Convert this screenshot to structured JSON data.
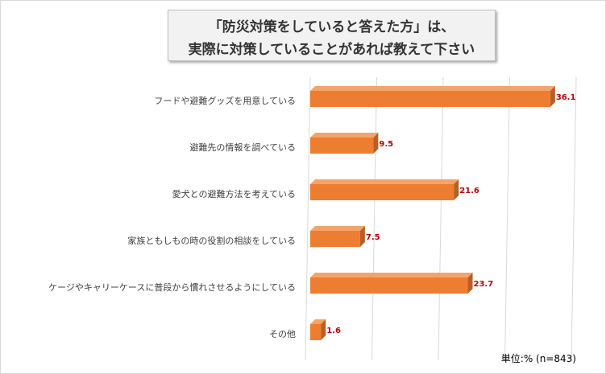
{
  "title": {
    "line1": "「防災対策をしていると答えた方」は、",
    "line2": "実際に対策していることがあれば教えて下さい"
  },
  "unit_note": "単位:% (n=843)",
  "colors": {
    "bar_front": "#ed7d31",
    "bar_top": "#f4a46a",
    "bar_side": "#b85f22",
    "label": "#c00000",
    "gridline": "#d9d9d9"
  },
  "chart_data": {
    "type": "bar",
    "orientation": "horizontal",
    "style": "3d",
    "categories": [
      "フードや避難グッズを用意している",
      "避難先の情報を調べている",
      "愛犬との避難方法を考えている",
      "家族ともしもの時の役割の相談をしている",
      "ケージやキャリーケースに普段から慣れさせるようにしている",
      "その他"
    ],
    "values": [
      36.1,
      9.5,
      21.6,
      7.5,
      23.7,
      1.6
    ],
    "value_labels": [
      "36.1",
      "9.5",
      "21.6",
      "7.5",
      "23.7",
      "1.6"
    ],
    "xlim": [
      0,
      40
    ],
    "grid": true,
    "unit": "%",
    "n": 843
  }
}
